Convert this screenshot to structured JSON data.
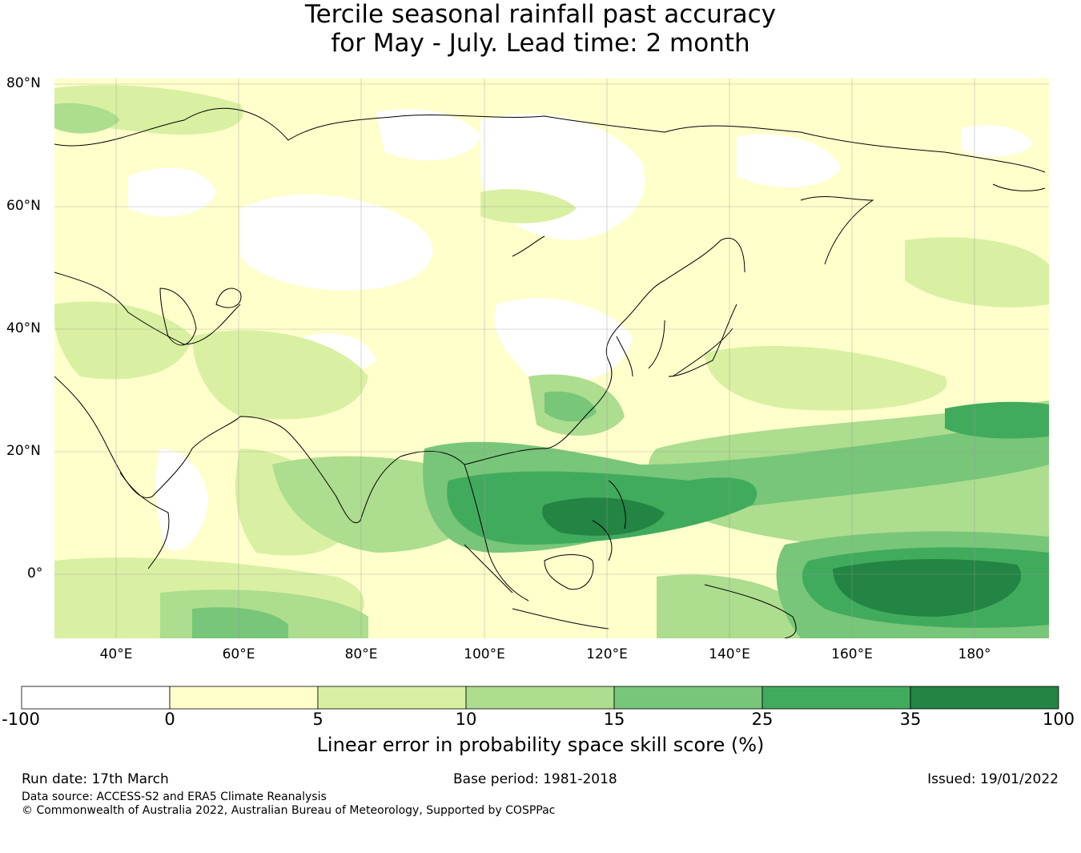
{
  "title": {
    "line1": "Tercile seasonal rainfall past accuracy",
    "line2": "for May - July. Lead time: 2 month"
  },
  "map": {
    "lat_labels": [
      "80°N",
      "60°N",
      "40°N",
      "20°N",
      "0°"
    ],
    "lon_labels": [
      "40°E",
      "60°E",
      "80°E",
      "100°E",
      "120°E",
      "140°E",
      "160°E",
      "180°"
    ],
    "lat_values": [
      80,
      60,
      40,
      20,
      0
    ],
    "lon_values": [
      40,
      60,
      80,
      100,
      120,
      140,
      160,
      180
    ],
    "extent": {
      "lon_min": 30,
      "lon_max": 192,
      "lat_min": -10,
      "lat_max": 81
    },
    "land_color": "#000000",
    "grid": true
  },
  "colorbar": {
    "label": "Linear error in probability space skill score (%)",
    "ticks": [
      "-100",
      "0",
      "5",
      "10",
      "15",
      "25",
      "35",
      "100"
    ],
    "bins": [
      {
        "from": -100,
        "to": 0,
        "color": "#ffffff"
      },
      {
        "from": 0,
        "to": 5,
        "color": "#ffffcc"
      },
      {
        "from": 5,
        "to": 10,
        "color": "#d9f0a3"
      },
      {
        "from": 10,
        "to": 15,
        "color": "#addd8e"
      },
      {
        "from": 15,
        "to": 25,
        "color": "#78c679"
      },
      {
        "from": 25,
        "to": 35,
        "color": "#41ab5d"
      },
      {
        "from": 35,
        "to": 100,
        "color": "#238443"
      }
    ]
  },
  "footer": {
    "run_date": "Run date: 17th March",
    "base_period": "Base period: 1981-2018",
    "issued": "Issued: 19/01/2022",
    "data_source": "Data source: ACCESS-S2 and ERA5 Climate Reanalysis",
    "copyright": "© Commonwealth of Australia 2022, Australian Bureau of Meteorology, Supported by COSPPac"
  }
}
